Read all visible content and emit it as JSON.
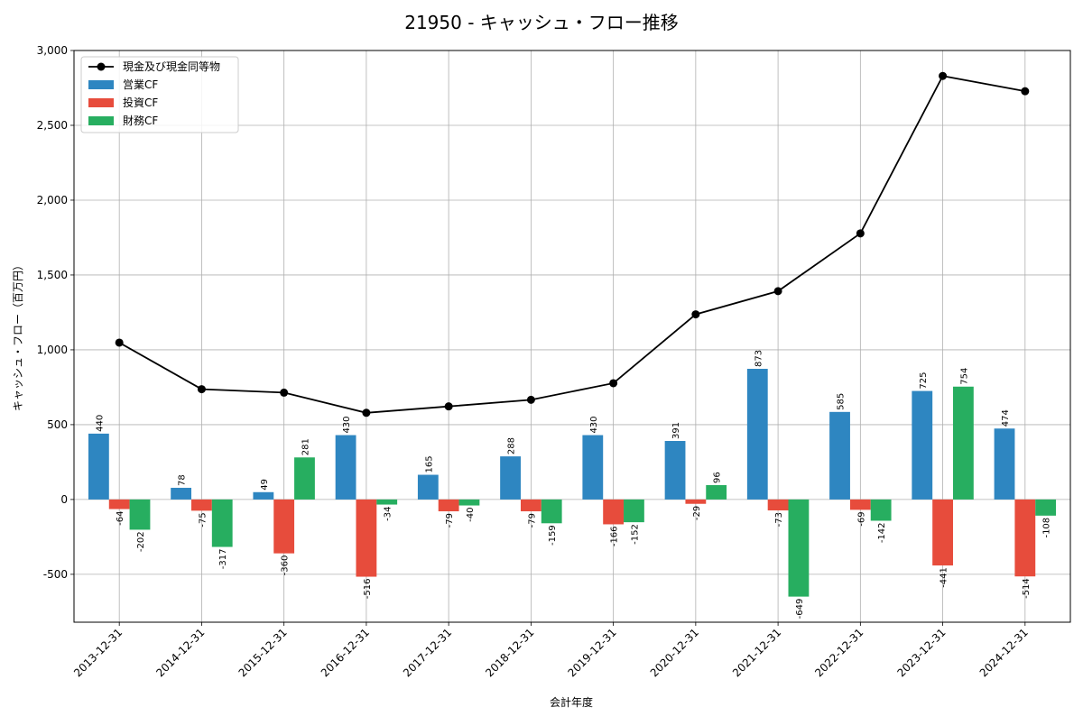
{
  "chart_data": {
    "type": "bar",
    "title": "21950 - キャッシュ・フロー推移",
    "xlabel": "会計年度",
    "ylabel": "キャッシュ・フロー（百万円）",
    "ylim": [
      -820,
      3000
    ],
    "yticks": [
      -500,
      0,
      500,
      1000,
      1500,
      2000,
      2500,
      3000
    ],
    "ytick_labels": [
      "-500",
      "0",
      "500",
      "1,000",
      "1,500",
      "2,000",
      "2,500",
      "3,000"
    ],
    "grid": true,
    "legend_position": "top-left",
    "categories": [
      "2013-12-31",
      "2014-12-31",
      "2015-12-31",
      "2016-12-31",
      "2017-12-31",
      "2018-12-31",
      "2019-12-31",
      "2020-12-31",
      "2021-12-31",
      "2022-12-31",
      "2023-12-31",
      "2024-12-31"
    ],
    "line": {
      "name": "現金及び現金同等物",
      "color": "#000000",
      "values": [
        1048,
        737,
        714,
        579,
        622,
        666,
        777,
        1237,
        1392,
        1778,
        2830,
        2728
      ]
    },
    "series": [
      {
        "name": "営業CF",
        "color": "#2e86c1",
        "values": [
          440,
          78,
          49,
          430,
          165,
          288,
          430,
          391,
          873,
          585,
          725,
          474
        ],
        "labels": [
          "440",
          "78",
          "49",
          "430",
          "165",
          "288",
          "430",
          "391",
          "873",
          "585",
          "725",
          "474"
        ]
      },
      {
        "name": "投資CF",
        "color": "#e74c3c",
        "values": [
          -64,
          -75,
          -360,
          -516,
          -79,
          -79,
          -166,
          -29,
          -73,
          -69,
          -441,
          -514
        ],
        "labels": [
          "-64",
          "-75",
          "-360",
          "-516",
          "-79",
          "-79",
          "-166",
          "-29",
          "-73",
          "-69",
          "-441",
          "-514"
        ]
      },
      {
        "name": "財務CF",
        "color": "#27ae60",
        "values": [
          -202,
          -317,
          281,
          -34,
          -40,
          -159,
          -152,
          96,
          -649,
          -142,
          754,
          -108
        ],
        "labels": [
          "-202",
          "-317",
          "281",
          "-34",
          "-40",
          "-159",
          "-152",
          "96",
          "-649",
          "-142",
          "754",
          "-108"
        ]
      }
    ]
  }
}
